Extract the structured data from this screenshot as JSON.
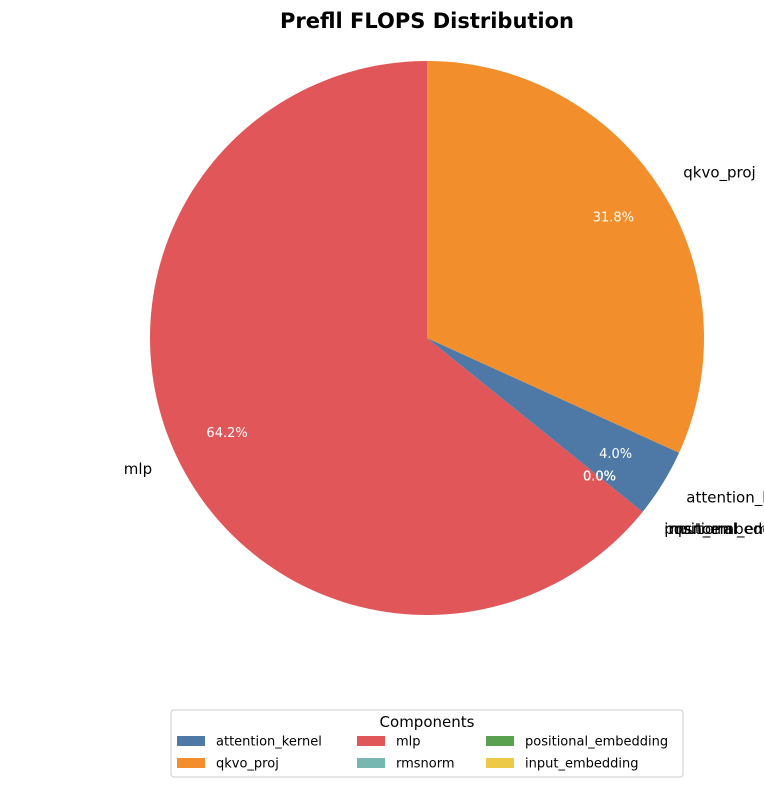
{
  "chart_data": {
    "type": "pie",
    "title": "Prefll FLOPS Distribution",
    "start_angle_deg": 90,
    "direction": "counterclockwise",
    "slices": [
      {
        "label": "mlp",
        "value": 64.2,
        "pct_label": "64.2%",
        "color": "#e15759"
      },
      {
        "label": "rmsnorm",
        "value": 0.0,
        "pct_label": "0.0%",
        "color": "#76b7b2"
      },
      {
        "label": "positional_embedding",
        "value": 0.0,
        "pct_label": "0.0%",
        "color": "#59a14f"
      },
      {
        "label": "input_embedding",
        "value": 0.0,
        "pct_label": "0.0%",
        "color": "#edc948"
      },
      {
        "label": "attention_kernel",
        "value": 4.0,
        "pct_label": "4.0%",
        "color": "#4e79a7"
      },
      {
        "label": "qkvo_proj",
        "value": 31.8,
        "pct_label": "31.8%",
        "color": "#f28e2b"
      }
    ],
    "legend": {
      "title": "Components",
      "placement": "bottom-center",
      "columns": 3,
      "entries": [
        {
          "label": "attention_kernel",
          "color": "#4e79a7"
        },
        {
          "label": "qkvo_proj",
          "color": "#f28e2b"
        },
        {
          "label": "mlp",
          "color": "#e15759"
        },
        {
          "label": "rmsnorm",
          "color": "#76b7b2"
        },
        {
          "label": "positional_embedding",
          "color": "#59a14f"
        },
        {
          "label": "input_embedding",
          "color": "#edc948"
        }
      ]
    }
  }
}
